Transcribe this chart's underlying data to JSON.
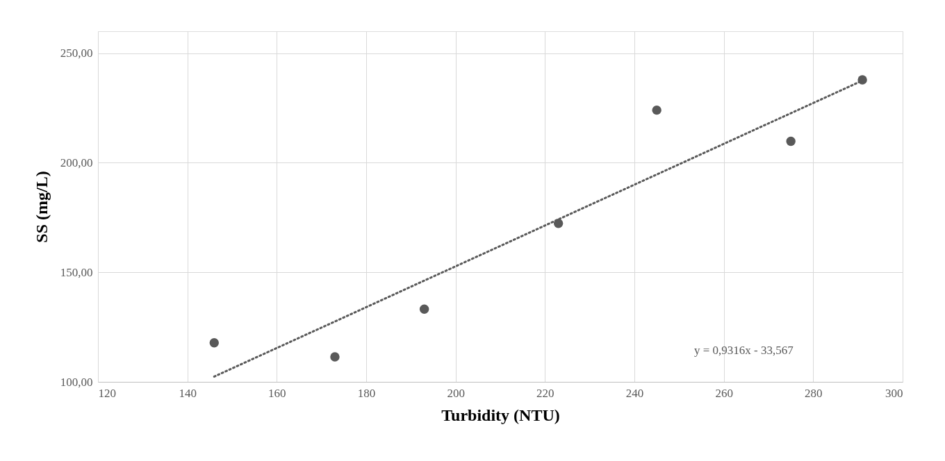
{
  "chart_data": {
    "type": "scatter",
    "xlabel": "Turbidity (NTU)",
    "ylabel": "SS (mg/L)",
    "xlim": [
      120,
      300
    ],
    "xticks": [
      120,
      140,
      160,
      180,
      200,
      220,
      240,
      260,
      280,
      300
    ],
    "ylim": [
      100,
      260
    ],
    "yticks": [
      {
        "value": 100,
        "label": "100,00"
      },
      {
        "value": 150,
        "label": "150,00"
      },
      {
        "value": 200,
        "label": "200,00"
      },
      {
        "value": 250,
        "label": "250,00"
      }
    ],
    "grid": true,
    "series": [
      {
        "color": "#595959",
        "marker": "circle",
        "x": [
          146,
          173,
          193,
          223,
          245,
          275,
          291
        ],
        "values": [
          117.8,
          111.4,
          133.2,
          172.3,
          224.0,
          209.8,
          237.8
        ]
      },
      {
        "type": "line",
        "color": "#595959",
        "line_style": "dotted",
        "x": [
          146,
          291
        ],
        "values": [
          102.4,
          237.5
        ]
      }
    ],
    "annotations": [
      "y = 0,9316x - 33,567"
    ]
  }
}
